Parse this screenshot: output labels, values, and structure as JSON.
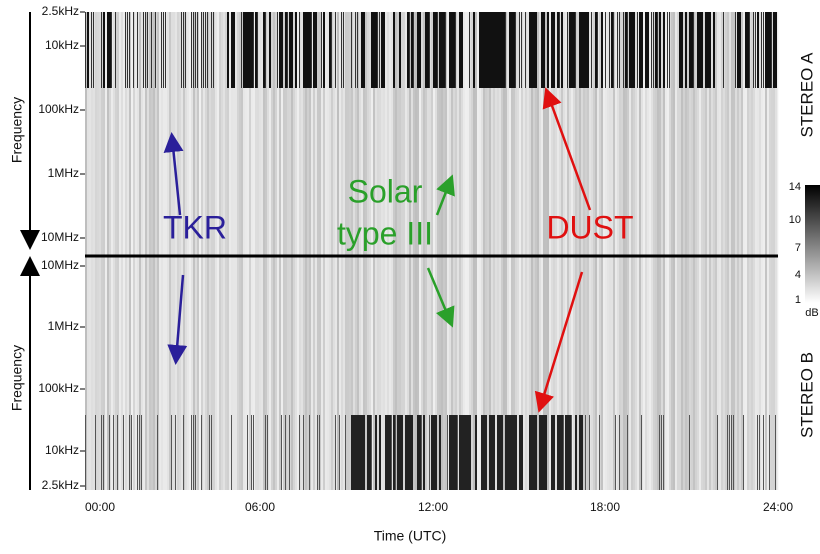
{
  "panels": [
    {
      "label": "STEREO A",
      "axis_title": "Frequency",
      "ticks": [
        "2.5kHz",
        "10kHz",
        "100kHz",
        "1MHz",
        "10MHz"
      ]
    },
    {
      "label": "STEREO B",
      "axis_title": "Frequency",
      "ticks": [
        "10MHz",
        "1MHz",
        "100kHz",
        "10kHz",
        "2.5kHz"
      ]
    }
  ],
  "x_axis": {
    "title": "Time (UTC)",
    "ticks": [
      "00:00",
      "06:00",
      "12:00",
      "18:00",
      "24:00"
    ]
  },
  "colorbar": {
    "ticks": [
      "14",
      "10",
      "7",
      "4",
      "1"
    ],
    "unit": "dB"
  },
  "annotations": [
    {
      "text": "TKR"
    },
    {
      "lines": [
        "Solar",
        "type III"
      ]
    },
    {
      "text": "DUST"
    }
  ]
}
